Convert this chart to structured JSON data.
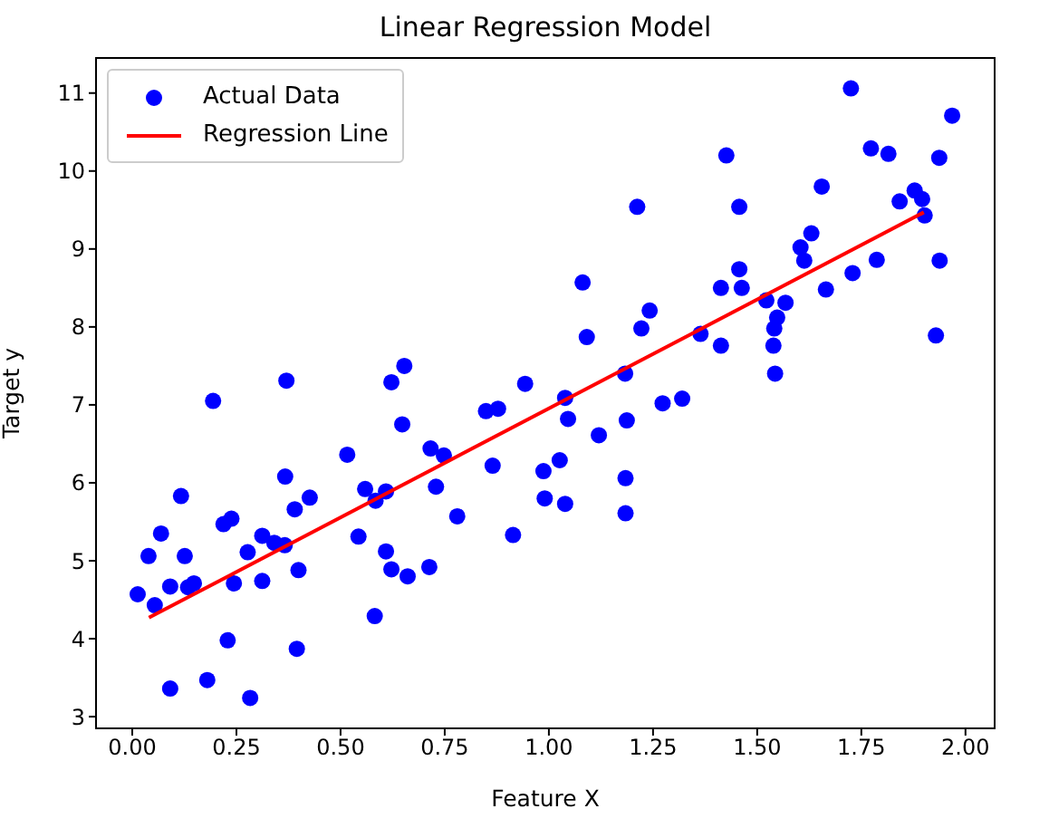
{
  "chart_data": {
    "type": "scatter",
    "title": "Linear Regression Model",
    "xlabel": "Feature X",
    "ylabel": "Target y",
    "xlim": [
      -0.087,
      2.07
    ],
    "ylim": [
      2.85,
      11.45
    ],
    "xticks": [
      {
        "value": 0,
        "label": "0.00"
      },
      {
        "value": 0.25,
        "label": "0.25"
      },
      {
        "value": 0.5,
        "label": "0.50"
      },
      {
        "value": 0.75,
        "label": "0.75"
      },
      {
        "value": 1,
        "label": "1.00"
      },
      {
        "value": 1.25,
        "label": "1.25"
      },
      {
        "value": 1.5,
        "label": "1.50"
      },
      {
        "value": 1.75,
        "label": "1.75"
      },
      {
        "value": 2,
        "label": "2.00"
      }
    ],
    "yticks": [
      3,
      4,
      5,
      6,
      7,
      8,
      9,
      10,
      11
    ],
    "grid": false,
    "legend": "top left",
    "series": [
      {
        "name": "Actual Data",
        "marker": "circle",
        "color": "#0000ff",
        "x": [
          0.013,
          0.039,
          0.054,
          0.069,
          0.091,
          0.091,
          0.117,
          0.126,
          0.134,
          0.148,
          0.194,
          0.18,
          0.219,
          0.238,
          0.229,
          0.244,
          0.277,
          0.283,
          0.312,
          0.312,
          0.341,
          0.366,
          0.367,
          0.37,
          0.39,
          0.399,
          0.395,
          0.426,
          0.516,
          0.543,
          0.559,
          0.582,
          0.584,
          0.609,
          0.609,
          0.622,
          0.622,
          0.653,
          0.648,
          0.661,
          0.713,
          0.716,
          0.729,
          0.748,
          0.78,
          0.849,
          0.878,
          0.865,
          0.914,
          0.943,
          1.039,
          1.046,
          1.026,
          0.987,
          0.99,
          1.039,
          1.12,
          1.183,
          1.187,
          1.184,
          1.184,
          1.273,
          1.32,
          1.543,
          1.725,
          1.968,
          1.773,
          1.815,
          1.937,
          1.426,
          1.655,
          1.212,
          1.457,
          1.878,
          1.896,
          1.842,
          1.902,
          1.63,
          1.604,
          1.613,
          1.938,
          1.787,
          1.729,
          1.457,
          1.413,
          1.463,
          1.665,
          1.081,
          1.242,
          1.222,
          1.091,
          1.522,
          1.568,
          1.548,
          1.541,
          1.539,
          1.413,
          1.364,
          1.929
        ],
        "values": [
          4.57,
          5.06,
          4.43,
          5.35,
          4.67,
          3.36,
          5.83,
          5.06,
          4.66,
          4.71,
          7.05,
          3.47,
          5.47,
          5.54,
          3.98,
          4.71,
          5.11,
          3.24,
          5.32,
          4.74,
          5.23,
          5.2,
          6.08,
          7.31,
          5.66,
          4.88,
          3.87,
          5.81,
          6.36,
          5.31,
          5.92,
          4.29,
          5.77,
          5.89,
          5.12,
          4.89,
          7.29,
          7.5,
          6.75,
          4.8,
          4.92,
          6.44,
          5.95,
          6.35,
          5.57,
          6.92,
          6.95,
          6.22,
          5.33,
          7.27,
          7.09,
          6.82,
          6.29,
          6.15,
          5.8,
          5.73,
          6.61,
          7.4,
          6.8,
          6.06,
          5.61,
          7.02,
          7.08,
          7.4,
          11.06,
          10.71,
          10.29,
          10.22,
          10.17,
          10.2,
          9.8,
          9.54,
          9.54,
          9.75,
          9.64,
          9.61,
          9.43,
          9.2,
          9.02,
          8.85,
          8.85,
          8.86,
          8.69,
          8.74,
          8.5,
          8.5,
          8.48,
          8.57,
          8.21,
          7.98,
          7.87,
          8.34,
          8.31,
          8.12,
          7.98,
          7.76,
          7.76,
          7.91,
          7.89
        ]
      },
      {
        "name": "Regression Line",
        "type": "line",
        "marker": "none",
        "color": "#ff0000",
        "x": [
          0.04,
          1.9
        ],
        "values": [
          4.27,
          9.47
        ]
      }
    ]
  }
}
